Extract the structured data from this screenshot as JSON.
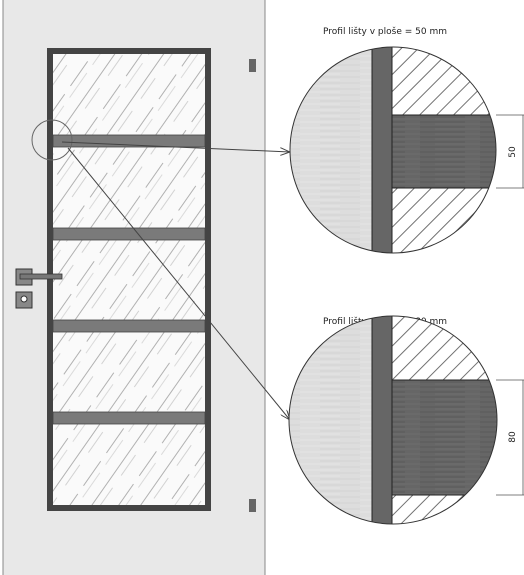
{
  "details": [
    {
      "label": "Profil lišty v ploše = 50 mm",
      "dimension": "50"
    },
    {
      "label": "Profil lišty v ploše = 80 mm",
      "dimension": "80"
    }
  ]
}
